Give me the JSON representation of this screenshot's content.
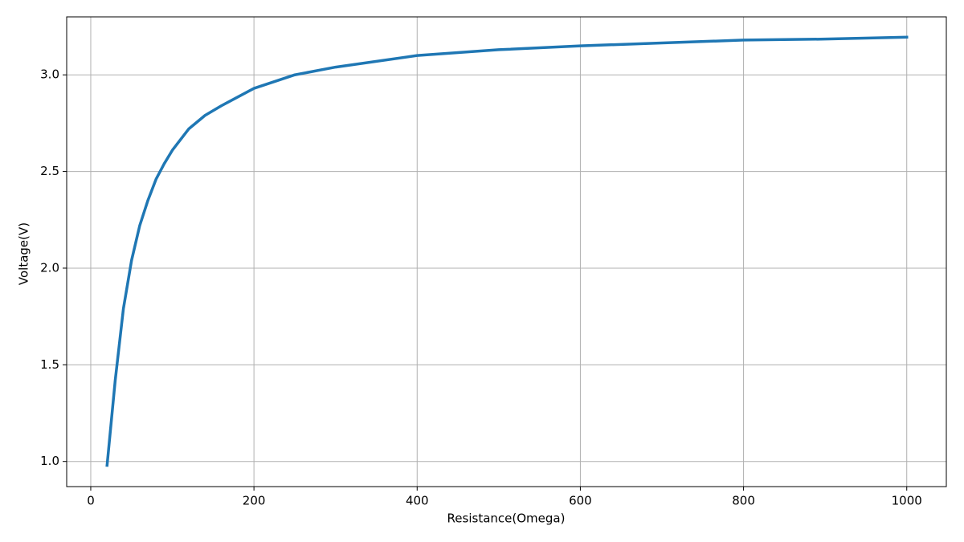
{
  "chart_data": {
    "type": "line",
    "x_label": "Resistance(Omega)",
    "y_label": "Voltage(V)",
    "x": [
      20,
      30,
      40,
      50,
      60,
      70,
      80,
      90,
      100,
      120,
      140,
      160,
      200,
      250,
      300,
      400,
      500,
      600,
      700,
      800,
      900,
      1000
    ],
    "series": [
      {
        "color": "#1f77b4",
        "values": [
          0.98,
          1.42,
          1.79,
          2.04,
          2.22,
          2.35,
          2.46,
          2.54,
          2.61,
          2.72,
          2.79,
          2.84,
          2.93,
          3.0,
          3.04,
          3.1,
          3.13,
          3.15,
          3.165,
          3.18,
          3.185,
          3.195
        ]
      }
    ],
    "xlim": [
      -29.5,
      1048.5
    ],
    "ylim": [
      0.87,
      3.3
    ],
    "xticks": [
      0,
      200,
      400,
      600,
      800,
      1000
    ],
    "yticks": [
      {
        "value": 1,
        "label": "1.0"
      },
      1.5,
      {
        "value": 2,
        "label": "2.0"
      },
      2.5,
      {
        "value": 3,
        "label": "3.0"
      }
    ],
    "grid": true
  }
}
